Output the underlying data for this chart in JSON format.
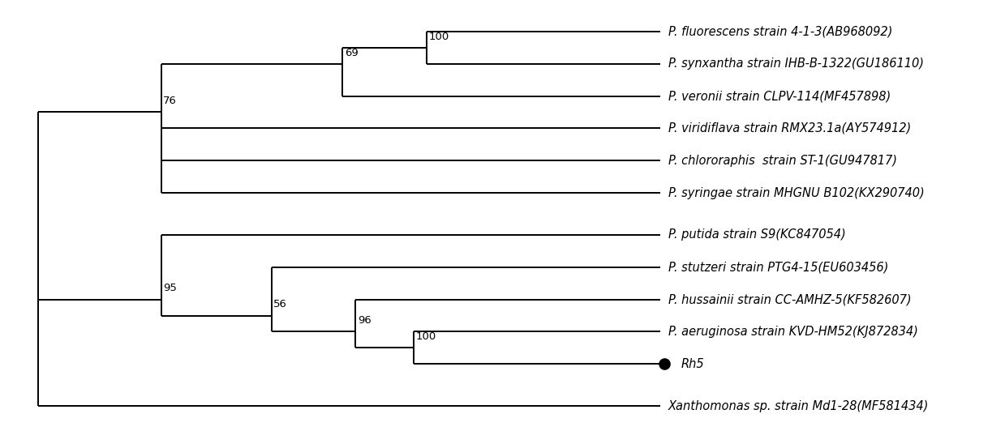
{
  "taxa": [
    "P. fluorescens strain 4-1-3(AB968092)",
    "P. synxantha strain IHB-B-1322(GU186110)",
    "P. veronii strain CLPV-114(MF457898)",
    "P. viridiflava strain RMX23.1a(AY574912)",
    "P. chlororaphis  strain ST-1(GU947817)",
    "P. syringae strain MHGNU B102(KX290740)",
    "P. putida strain S9(KC847054)",
    "P. stutzeri strain PTG4-15(EU603456)",
    "P. hussainii strain CC-AMHZ-5(KF582607)",
    "P. aeruginosa strain KVD-HM52(KJ872834)",
    "Rh5",
    "Xanthomonas sp. strain Md1-28(MF581434)"
  ],
  "taxa_bold": [
    false,
    false,
    false,
    false,
    false,
    false,
    false,
    false,
    false,
    false,
    false,
    false
  ],
  "taxa_circle": [
    false,
    false,
    false,
    false,
    false,
    false,
    false,
    false,
    false,
    false,
    true,
    false
  ],
  "line_color": "#000000",
  "line_width": 1.4,
  "font_size": 10.5,
  "bg_color": "#ffffff",
  "fig_width": 12.39,
  "fig_height": 5.32
}
